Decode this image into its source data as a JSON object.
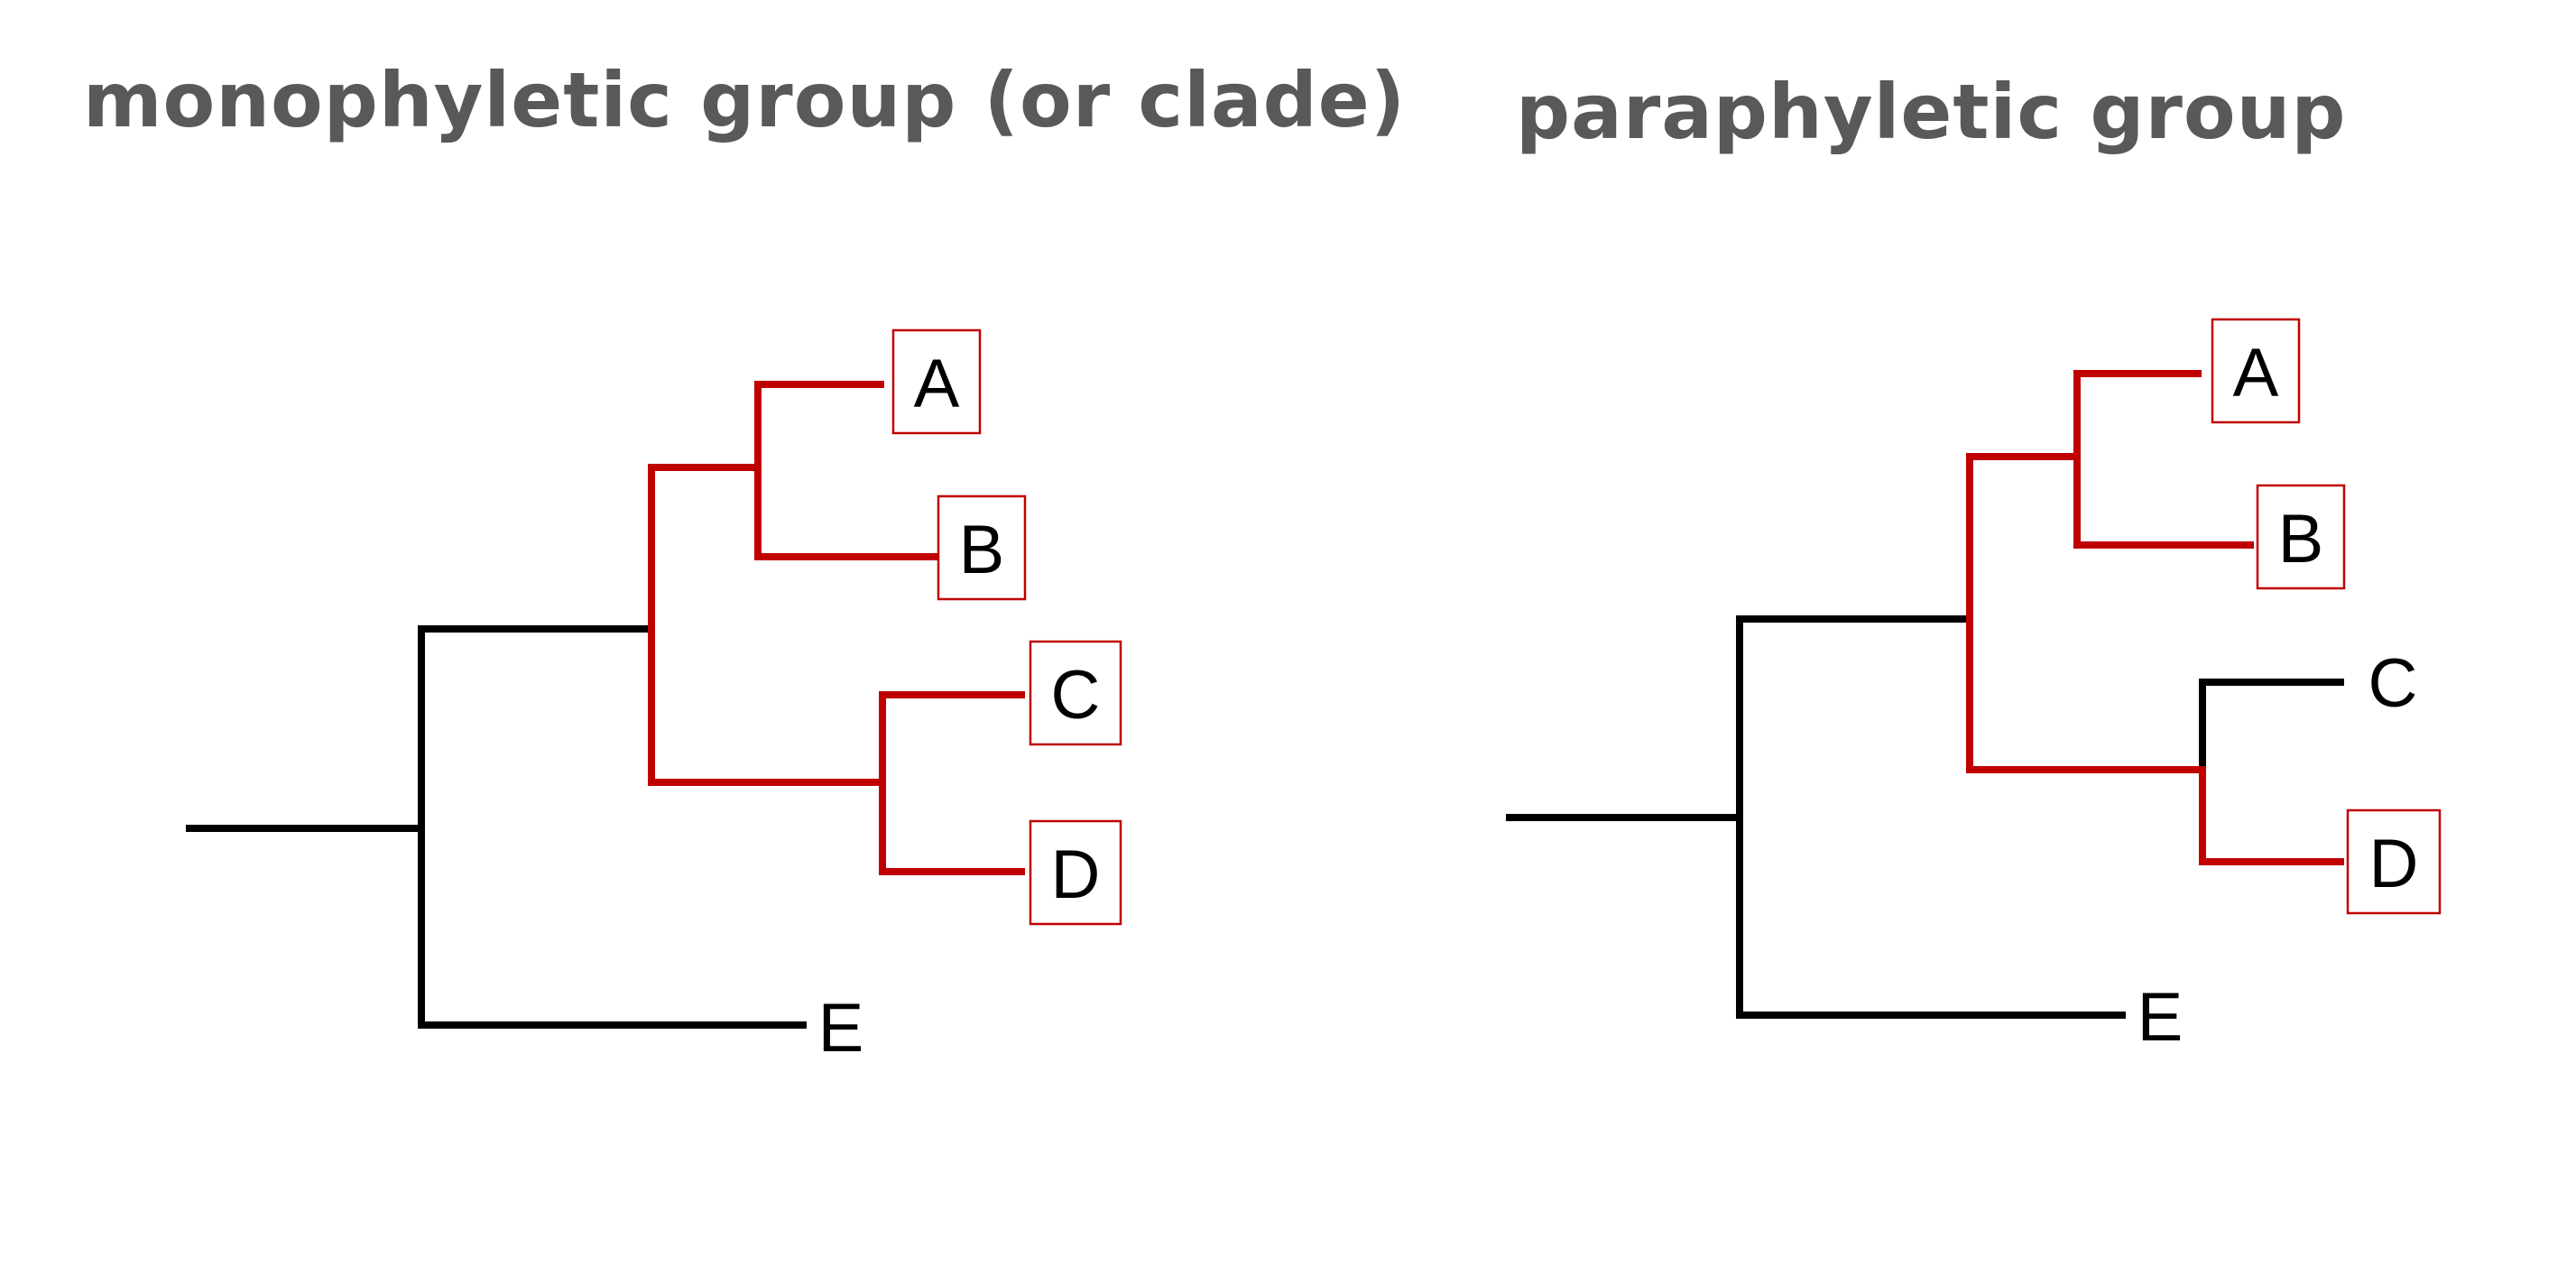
{
  "colors": {
    "background": "#ffffff",
    "title": "#595959",
    "branch_default": "#000000",
    "branch_highlight": "#c00000",
    "label_box": "#c00000"
  },
  "panels": [
    {
      "title": "monophyletic group (or clade)",
      "taxa": [
        "A",
        "B",
        "C",
        "D",
        "E"
      ],
      "highlighted_taxa": [
        "A",
        "B",
        "C",
        "D"
      ]
    },
    {
      "title": "paraphyletic group",
      "taxa": [
        "A",
        "B",
        "C",
        "D",
        "E"
      ],
      "highlighted_taxa": [
        "A",
        "B",
        "D"
      ]
    }
  ]
}
